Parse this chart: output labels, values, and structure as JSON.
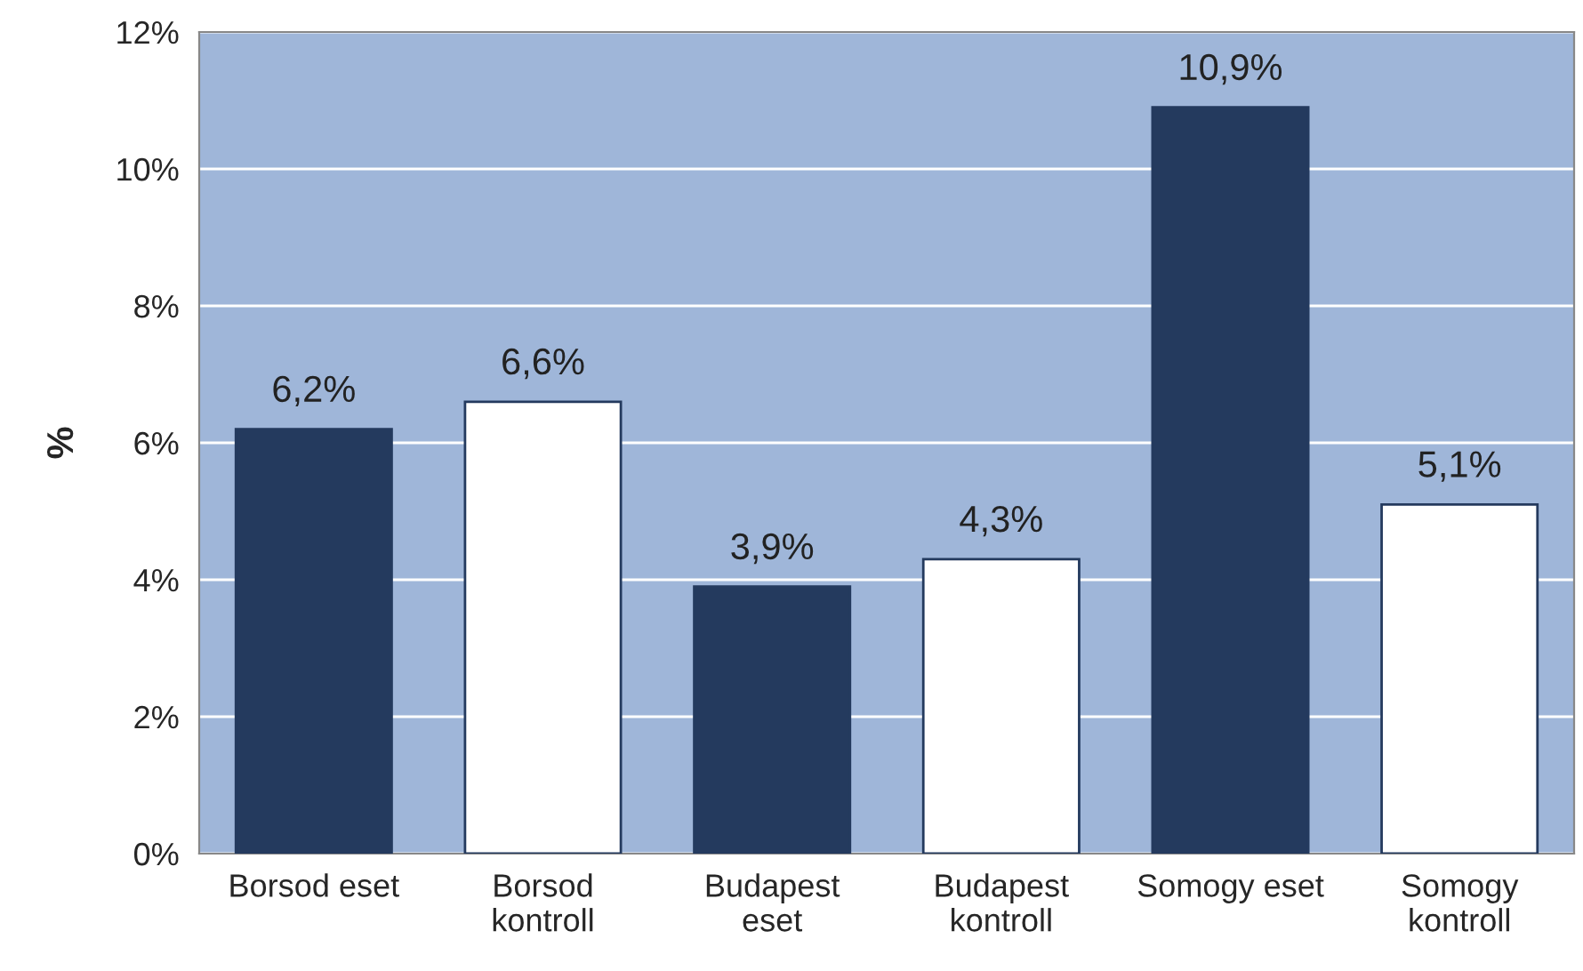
{
  "chart_data": {
    "type": "bar",
    "ylabel": "%",
    "categories": [
      "Borsod eset",
      "Borsod\nkontroll",
      "Budapest\neset",
      "Budapest\nkontroll",
      "Somogy eset",
      "Somogy\nkontroll"
    ],
    "values": [
      6.2,
      6.6,
      3.9,
      4.3,
      10.9,
      5.1
    ],
    "colors": [
      "#243a5e",
      "#ffffff",
      "#243a5e",
      "#ffffff",
      "#243a5e",
      "#ffffff"
    ],
    "value_labels": [
      "6,2%",
      "6,6%",
      "3,9%",
      "4,3%",
      "10,9%",
      "5,1%"
    ],
    "ylim": [
      0,
      12
    ],
    "yticks": [
      {
        "value": 0,
        "label": "0%"
      },
      {
        "value": 2,
        "label": "2%"
      },
      {
        "value": 4,
        "label": "4%"
      },
      {
        "value": 6,
        "label": "6%"
      },
      {
        "value": 8,
        "label": "8%"
      },
      {
        "value": 10,
        "label": "10%"
      },
      {
        "value": 12,
        "label": "12%"
      }
    ],
    "grid": "y",
    "legend": false
  }
}
